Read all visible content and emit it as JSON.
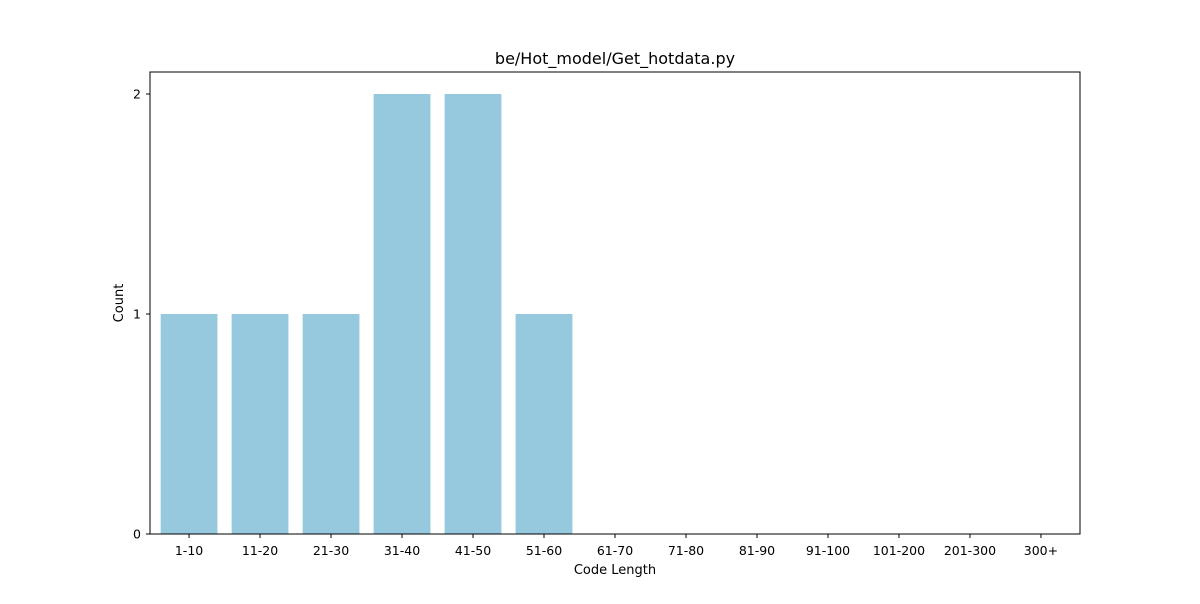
{
  "chart_data": {
    "type": "bar",
    "title": "be/Hot_model/Get_hotdata.py",
    "xlabel": "Code Length",
    "ylabel": "Count",
    "categories": [
      "1-10",
      "11-20",
      "21-30",
      "31-40",
      "41-50",
      "51-60",
      "61-70",
      "71-80",
      "81-90",
      "91-100",
      "101-200",
      "201-300",
      "300+"
    ],
    "values": [
      1,
      1,
      1,
      2,
      2,
      1,
      0,
      0,
      0,
      0,
      0,
      0,
      0
    ],
    "ylim": [
      0,
      2.1
    ],
    "yticks": [
      0,
      1,
      2
    ],
    "grid": false,
    "legend": "none",
    "bar_color": "#96c9de"
  }
}
